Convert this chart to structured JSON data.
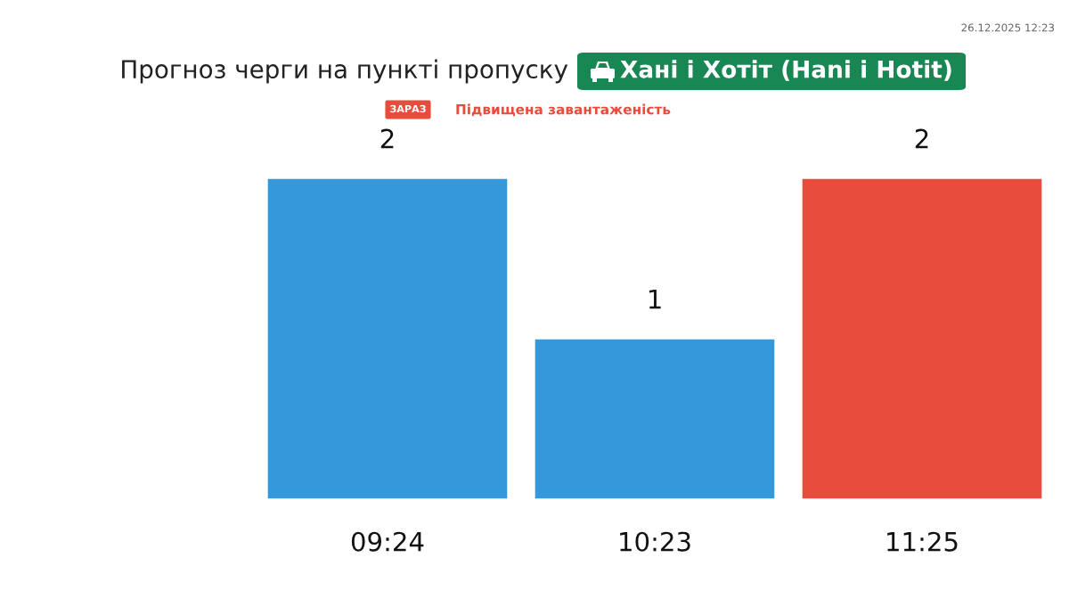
{
  "chart_data": {
    "type": "bar",
    "title": "Прогноз черги на пункті пропуску",
    "subtitle": "Хані і Хотіт (Hani i Hotit)",
    "annotations": [
      "26.12.2025 12:23",
      "ЗАРАЗ",
      "Підвищена завантаженість"
    ],
    "categories": [
      "09:24",
      "10:23",
      "11:25"
    ],
    "values": [
      2,
      1,
      2
    ],
    "colors": [
      "#3498db",
      "#3498db",
      "#e74c3c"
    ],
    "data_labels": true
  }
}
